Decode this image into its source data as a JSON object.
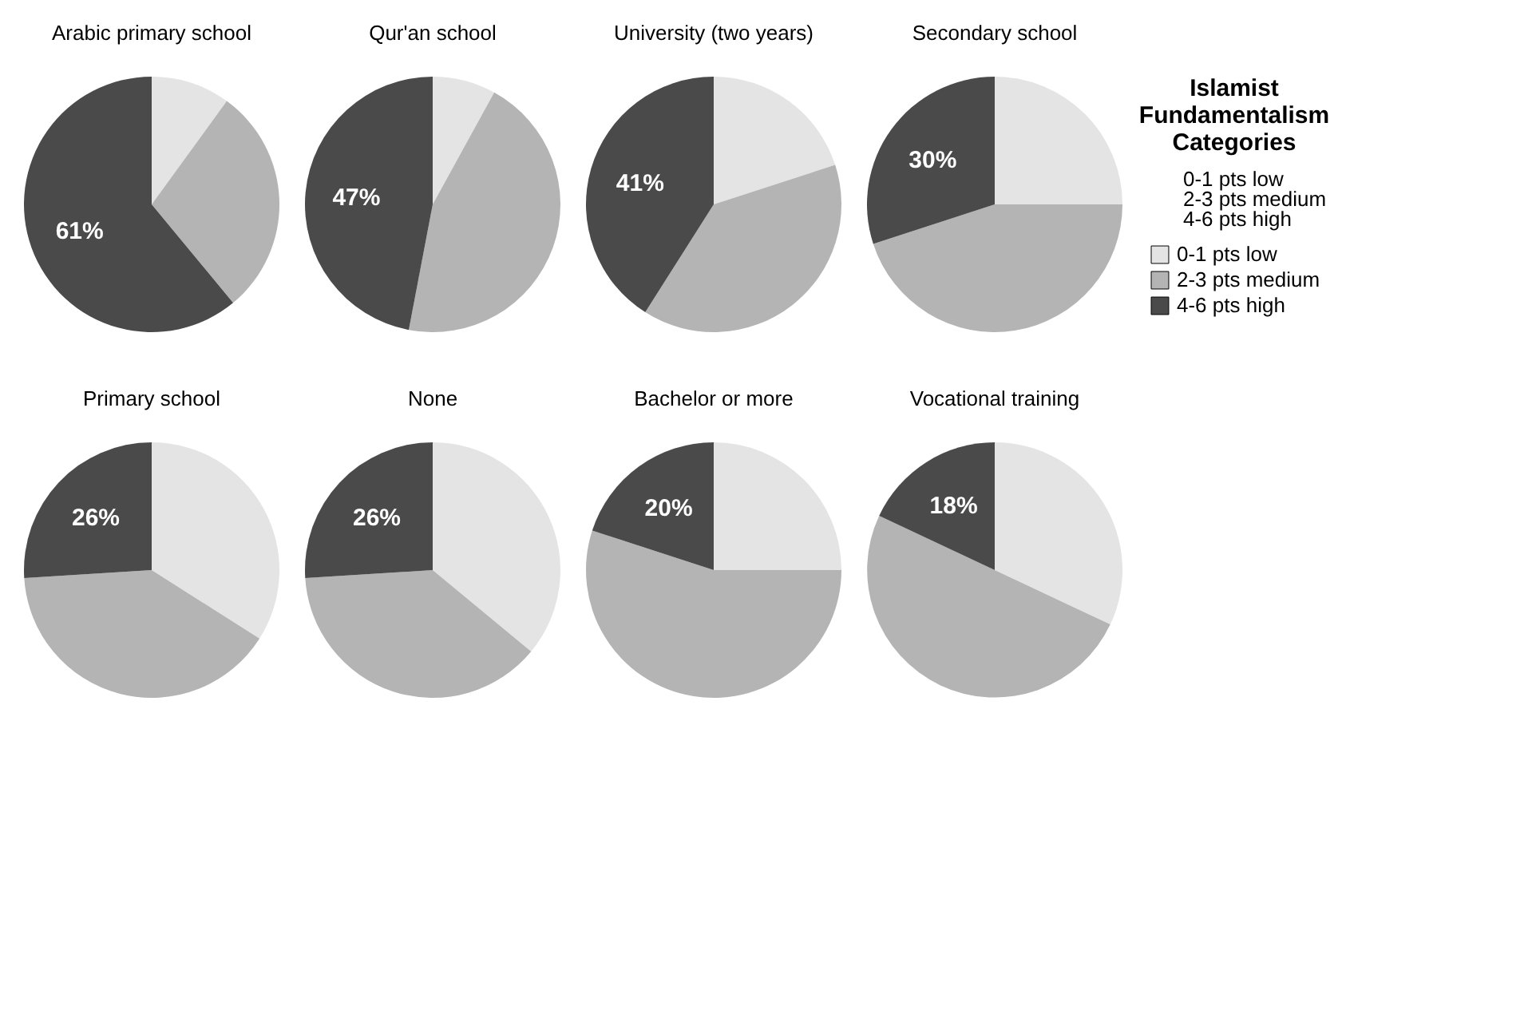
{
  "chart_data": [
    {
      "type": "pie",
      "title": "Arabic primary school",
      "categories": [
        null,
        null,
        null
      ],
      "values": [
        10,
        29,
        61
      ],
      "colors": [
        "#e4e4e4",
        "#b4b4b4",
        "#4a4a4a"
      ],
      "value_labels": [
        null,
        null,
        "61%"
      ]
    },
    {
      "type": "pie",
      "title": "Qur'an school",
      "categories": [
        null,
        null,
        null
      ],
      "values": [
        8,
        45,
        47
      ],
      "colors": [
        "#e4e4e4",
        "#b4b4b4",
        "#4a4a4a"
      ],
      "value_labels": [
        null,
        null,
        "47%"
      ]
    },
    {
      "type": "pie",
      "title": "University (two years)",
      "categories": [
        null,
        null,
        null
      ],
      "values": [
        20,
        39,
        41
      ],
      "colors": [
        "#e4e4e4",
        "#b4b4b4",
        "#4a4a4a"
      ],
      "value_labels": [
        null,
        null,
        "41%"
      ]
    },
    {
      "type": "pie",
      "title": "Secondary school",
      "categories": [
        "0-1 pts low",
        "2-3 pts medium",
        "4-6 pts high"
      ],
      "values": [
        25,
        45,
        30
      ],
      "colors": [
        "#e4e4e4",
        "#b4b4b4",
        "#4a4a4a"
      ],
      "value_labels": [
        null,
        null,
        "30%"
      ],
      "legend": "right",
      "legend_title": "Islamist Fundamentalism Categories",
      "annotations": [
        "0-1 pts low",
        "2-3 pts medium",
        "4-6 pts high"
      ]
    },
    {
      "type": "pie",
      "title": "Primary school",
      "categories": [
        null,
        null,
        null
      ],
      "values": [
        34,
        40,
        26
      ],
      "colors": [
        "#e4e4e4",
        "#b4b4b4",
        "#4a4a4a"
      ],
      "value_labels": [
        null,
        null,
        "26%"
      ]
    },
    {
      "type": "pie",
      "title": "None",
      "categories": [
        null,
        null,
        null
      ],
      "values": [
        36,
        38,
        26
      ],
      "colors": [
        "#e4e4e4",
        "#b4b4b4",
        "#4a4a4a"
      ],
      "value_labels": [
        null,
        null,
        "26%"
      ]
    },
    {
      "type": "pie",
      "title": "Bachelor or more",
      "categories": [
        null,
        null,
        null
      ],
      "values": [
        25,
        55,
        20
      ],
      "colors": [
        "#e4e4e4",
        "#b4b4b4",
        "#4a4a4a"
      ],
      "value_labels": [
        null,
        null,
        "20%"
      ]
    },
    {
      "type": "pie",
      "title": "Vocational training",
      "categories": [
        null,
        null,
        null
      ],
      "values": [
        32,
        50,
        18
      ],
      "colors": [
        "#e4e4e4",
        "#b4b4b4",
        "#4a4a4a"
      ],
      "value_labels": [
        null,
        null,
        "18%"
      ]
    }
  ]
}
